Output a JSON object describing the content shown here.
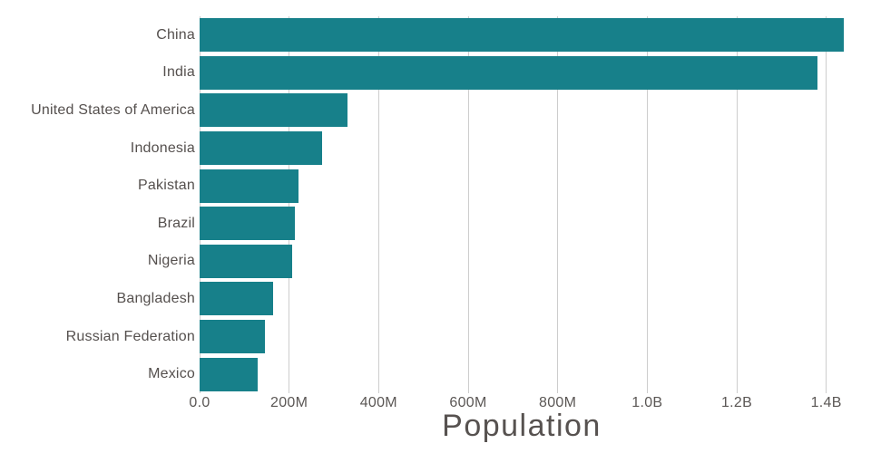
{
  "chart_data": {
    "type": "bar",
    "orientation": "horizontal",
    "title": "",
    "xlabel": "Population",
    "ylabel": "",
    "categories": [
      "China",
      "India",
      "United States of America",
      "Indonesia",
      "Pakistan",
      "Brazil",
      "Nigeria",
      "Bangladesh",
      "Russian Federation",
      "Mexico"
    ],
    "values_millions": [
      1439.3,
      1380.0,
      331.0,
      273.5,
      220.9,
      212.6,
      206.1,
      164.7,
      145.9,
      128.9
    ],
    "xlim_millions": [
      0,
      1500
    ],
    "x_ticks": [
      {
        "value_millions": 0,
        "label": "0.0"
      },
      {
        "value_millions": 200,
        "label": "200M"
      },
      {
        "value_millions": 400,
        "label": "400M"
      },
      {
        "value_millions": 600,
        "label": "600M"
      },
      {
        "value_millions": 800,
        "label": "800M"
      },
      {
        "value_millions": 1000,
        "label": "1.0B"
      },
      {
        "value_millions": 1200,
        "label": "1.2B"
      },
      {
        "value_millions": 1400,
        "label": "1.4B"
      }
    ],
    "grid": "vertical-only",
    "legend_position": "none",
    "colors": {
      "bar": "#17808a",
      "gridline": "#cdcdcd",
      "category_label": "#55504e",
      "tick_label": "#5b5755",
      "axis_title": "#575250",
      "background": "#ffffff"
    }
  }
}
